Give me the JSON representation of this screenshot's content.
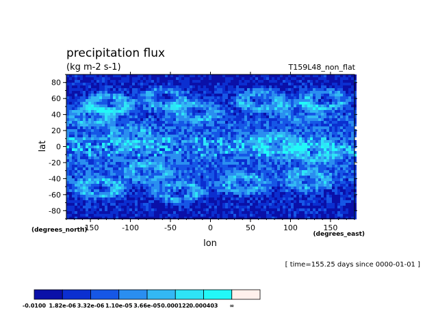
{
  "chart_data": {
    "type": "heatmap",
    "title": "precipitation flux",
    "subtitle": "(kg m-2 s-1)",
    "experiment": "T159L48_non_flat",
    "xlabel": "lon",
    "ylabel": "lat",
    "x_units": "(degrees_east)",
    "y_units": "(degrees_north)",
    "xlim": [
      -180,
      180
    ],
    "ylim": [
      -90,
      90
    ],
    "x_ticks": [
      -150,
      -100,
      -50,
      0,
      50,
      100,
      150
    ],
    "y_ticks": [
      -80,
      -60,
      -40,
      -20,
      0,
      20,
      40,
      60,
      80
    ],
    "time_label": "[ time=155.25 days since 0000-01-01 ]",
    "colorbar": {
      "labels": [
        "-0.0100",
        "1.82e-06",
        "3.32e-06",
        "1.10e-05",
        "3.66e-05",
        "0.000122",
        "0.000403",
        "∞"
      ],
      "colors": [
        "#0a10a8",
        "#0b2fd0",
        "#1657e6",
        "#2a8ef0",
        "#33b8f4",
        "#2ee4f6",
        "#22f8f8",
        "#fff0ec"
      ]
    }
  }
}
